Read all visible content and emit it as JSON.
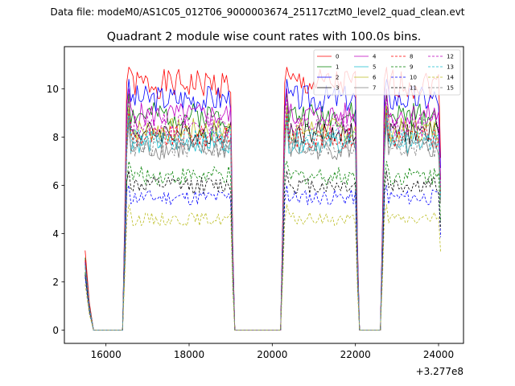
{
  "suptitle": "Data file: modeM0/AS1C05_012T06_9000003674_25117cztM0_level2_quad_clean.evt",
  "chart_data": {
    "type": "line",
    "title": "Quadrant 2 module wise count rates with 100.0s bins.",
    "xlabel": "",
    "ylabel": "",
    "x_offset_label": "+3.277e8",
    "xlim": [
      15000,
      24600
    ],
    "ylim": [
      -0.55,
      11.75
    ],
    "xticks": [
      16000,
      18000,
      20000,
      22000,
      24000
    ],
    "xtick_labels": [
      "16000",
      "18000",
      "20000",
      "22000",
      "24000"
    ],
    "yticks": [
      0,
      2,
      4,
      6,
      8,
      10
    ],
    "ytick_labels": [
      "0",
      "2",
      "4",
      "6",
      "8",
      "10"
    ],
    "grid": false,
    "legend_position": "top-right",
    "legend_columns": 4,
    "segments": [
      {
        "start": 16500,
        "end": 19000
      },
      {
        "start": 20300,
        "end": 22000
      },
      {
        "start": 22700,
        "end": 24000
      }
    ],
    "edge_points": [
      {
        "x": 15500,
        "y": "start",
        "note": "partial bin"
      },
      {
        "x": 15600,
        "y": 1.2
      },
      {
        "x": 15700,
        "y": 0
      },
      {
        "x": 16400,
        "y": 0
      }
    ],
    "series": [
      {
        "name": "0",
        "color": "#ff0000",
        "dash": "solid",
        "start": 3.3,
        "level": 10.2,
        "peak": 10.9
      },
      {
        "name": "1",
        "color": "#008000",
        "dash": "solid",
        "start": 3.0,
        "level": 8.9,
        "peak": 9.8
      },
      {
        "name": "2",
        "color": "#0000ff",
        "dash": "solid",
        "start": 2.9,
        "level": 9.6,
        "peak": 10.4
      },
      {
        "name": "3",
        "color": "#000000",
        "dash": "solid",
        "start": 2.8,
        "level": 8.2,
        "peak": 9.2
      },
      {
        "name": "4",
        "color": "#bf00bf",
        "dash": "solid",
        "start": 2.8,
        "level": 8.9,
        "peak": 10.0
      },
      {
        "name": "5",
        "color": "#17becf",
        "dash": "solid",
        "start": 2.7,
        "level": 7.8,
        "peak": 9.1
      },
      {
        "name": "6",
        "color": "#bcbd22",
        "dash": "solid",
        "start": 2.7,
        "level": 8.3,
        "peak": 9.3
      },
      {
        "name": "7",
        "color": "#7f7f7f",
        "dash": "solid",
        "start": 2.6,
        "level": 7.5,
        "peak": 8.7
      },
      {
        "name": "8",
        "color": "#ff0000",
        "dash": "dashed",
        "start": 2.9,
        "level": 8.0,
        "peak": 9.0
      },
      {
        "name": "9",
        "color": "#008000",
        "dash": "dashed",
        "start": 2.4,
        "level": 6.4,
        "peak": 7.0
      },
      {
        "name": "10",
        "color": "#0000ff",
        "dash": "dashed",
        "start": 2.2,
        "level": 5.5,
        "peak": 6.0
      },
      {
        "name": "11",
        "color": "#000000",
        "dash": "dashed",
        "start": 2.3,
        "level": 6.0,
        "peak": 6.6
      },
      {
        "name": "12",
        "color": "#bf00bf",
        "dash": "dashed",
        "start": 2.7,
        "level": 8.5,
        "peak": 9.6
      },
      {
        "name": "13",
        "color": "#17becf",
        "dash": "dashed",
        "start": 2.7,
        "level": 7.9,
        "peak": 8.9
      },
      {
        "name": "14",
        "color": "#bcbd22",
        "dash": "dashed",
        "start": 1.9,
        "level": 4.6,
        "peak": 5.2
      },
      {
        "name": "15",
        "color": "#7f7f7f",
        "dash": "dashed",
        "start": 2.6,
        "level": 7.6,
        "peak": 8.6
      }
    ]
  }
}
